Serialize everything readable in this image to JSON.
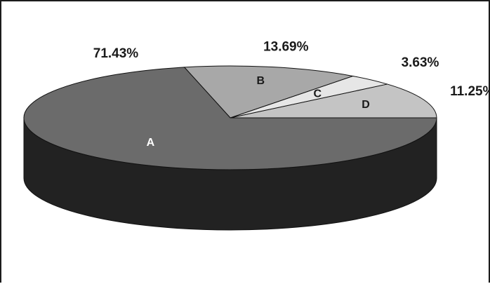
{
  "chart_data": {
    "type": "pie",
    "title": "",
    "legend": "none",
    "three_d": true,
    "slices": [
      {
        "label": "A",
        "value": 71.43,
        "value_label": "71.43%",
        "color": "#6b6b6b",
        "label_color": "#ffffff"
      },
      {
        "label": "B",
        "value": 13.69,
        "value_label": "13.69%",
        "color": "#a8a8a8",
        "label_color": "#1a1a1a"
      },
      {
        "label": "C",
        "value": 3.63,
        "value_label": "3.63%",
        "color": "#e6e6e6",
        "label_color": "#1a1a1a"
      },
      {
        "label": "D",
        "value": 11.25,
        "value_label": "11.25%",
        "color": "#c4c4c4",
        "label_color": "#1a1a1a"
      }
    ],
    "side_color": "#222222"
  }
}
